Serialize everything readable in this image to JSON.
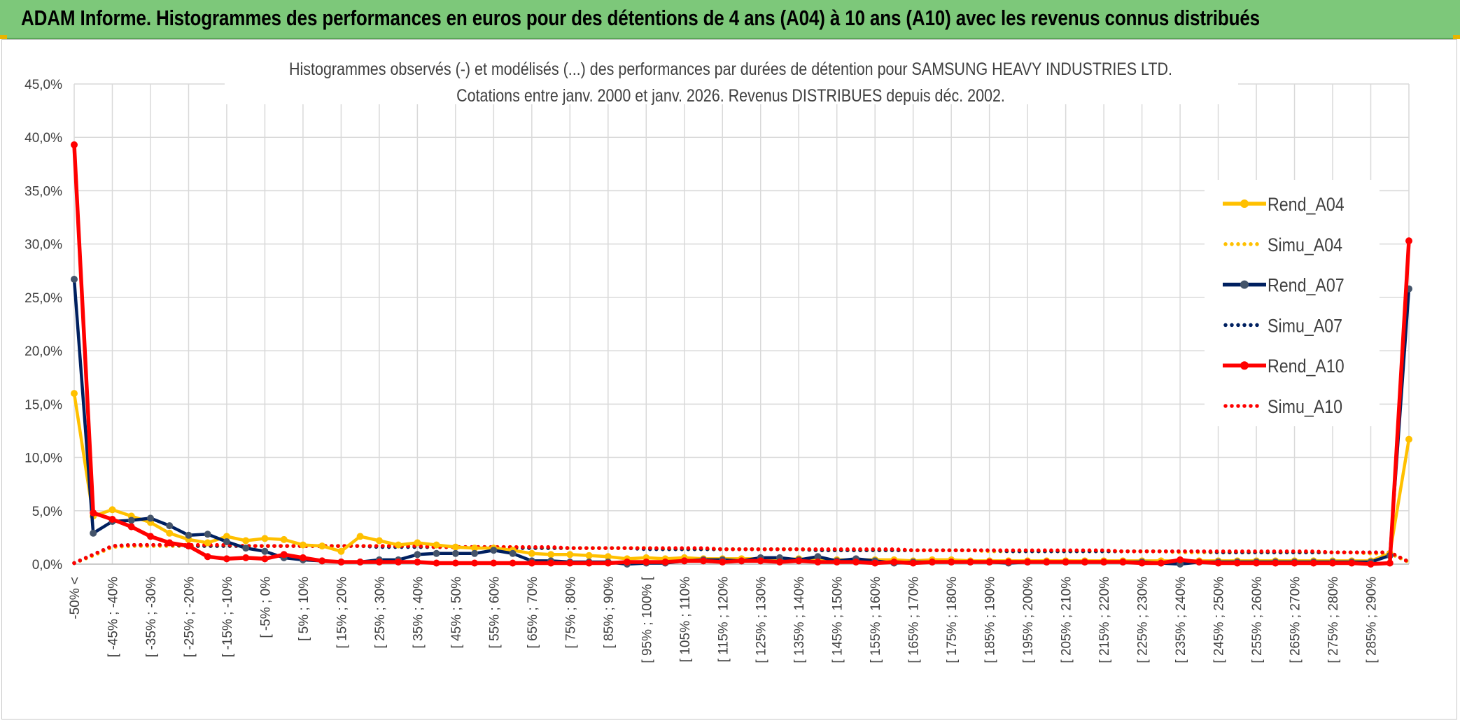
{
  "banner": {
    "title": "ADAM Informe. Histogrammes des performances en euros pour des détentions de 4 ans (A04) à 10 ans (A10) avec les revenus connus distribués"
  },
  "colors": {
    "banner_bg": "#7dc87a",
    "A04": "#ffc000",
    "A07": "#002060",
    "A07_marker": "#44546a",
    "A10": "#ff0000",
    "grid": "#d9d9d9"
  },
  "chart_data": {
    "type": "line",
    "title": "Histogrammes observés (-) et modélisés (...) des performances par durées de détention pour SAMSUNG HEAVY INDUSTRIES LTD.",
    "subtitle": "Cotations entre janv. 2000 et janv. 2026. Revenus DISTRIBUES depuis déc. 2002.",
    "ylim": [
      0,
      45
    ],
    "y_ticks": [
      "0,0%",
      "5,0%",
      "10,0%",
      "15,0%",
      "20,0%",
      "25,0%",
      "30,0%",
      "35,0%",
      "40,0%",
      "45,0%"
    ],
    "grid": true,
    "legend_position": "right",
    "categories": [
      "-50% <",
      "[ -50% ; -45%",
      "[ -45% ; -40%",
      "[ -40% ; -35%",
      "[ -35% ; -30%",
      "[ -30% ; -25%",
      "[ -25% ; -20%",
      "[ -20% ; -15%",
      "[ -15% ; -10%",
      "[ -10% ; -5%",
      "[ -5% ; 0%",
      "[ 0% ; 5%",
      "[ 5% ; 10%",
      "[ 10% ; 15%",
      "[ 15% ; 20%",
      "[ 20% ; 25%",
      "[ 25% ; 30%",
      "[ 30% ; 35%",
      "[ 35% ; 40%",
      "[ 40% ; 45%",
      "[ 45% ; 50%",
      "[ 50% ; 55%",
      "[ 55% ; 60%",
      "[ 60% ; 65%",
      "[ 65% ; 70%",
      "[ 70% ; 75%",
      "[ 75% ; 80%",
      "[ 80% ; 85%",
      "[ 85% ; 90%",
      "[ 90% ; 95%",
      "[ 95% ; 100% [",
      "[ 100% ; 105%",
      "[ 105% ; 110%",
      "[ 110% ; 115%",
      "[ 115% ; 120%",
      "[ 120% ; 125%",
      "[ 125% ; 130%",
      "[ 130% ; 135%",
      "[ 135% ; 140%",
      "[ 140% ; 145%",
      "[ 145% ; 150%",
      "[ 150% ; 155%",
      "[ 155% ; 160%",
      "[ 160% ; 165%",
      "[ 165% ; 170%",
      "[ 170% ; 175%",
      "[ 175% ; 180%",
      "[ 180% ; 185%",
      "[ 185% ; 190%",
      "[ 190% ; 195%",
      "[ 195% ; 200%",
      "[ 200% ; 205%",
      "[ 205% ; 210%",
      "[ 210% ; 215%",
      "[ 215% ; 220%",
      "[ 220% ; 225%",
      "[ 225% ; 230%",
      "[ 230% ; 235%",
      "[ 235% ; 240%",
      "[ 240% ; 245%",
      "[ 245% ; 250%",
      "[ 250% ; 255%",
      "[ 255% ; 260%",
      "[ 260% ; 265%",
      "[ 265% ; 270%",
      "[ 270% ; 275%",
      "[ 275% ; 280%",
      "[ 280% ; 285%",
      "[ 285% ; 290%",
      "[ 290% ; 295%",
      "295% <"
    ],
    "shown_tick_labels": [
      "-50% <",
      "[ -45% ; -40%",
      "[ -35% ; -30%",
      "[ -25% ; -20%",
      "[ -15% ; -10%",
      "[ -5% ; 0%",
      "[ 5% ; 10%",
      "[ 15% ; 20%",
      "[ 25% ; 30%",
      "[ 35% ; 40%",
      "[ 45% ; 50%",
      "[ 55% ; 60%",
      "[ 65% ; 70%",
      "[ 75% ; 80%",
      "[ 85% ; 90%",
      "[ 95% ; 100% [",
      "[ 105% ; 110%",
      "[ 115% ; 120%",
      "[ 125% ; 130%",
      "[ 135% ; 140%",
      "[ 145% ; 150%",
      "[ 155% ; 160%",
      "[ 165% ; 170%",
      "[ 175% ; 180%",
      "[ 185% ; 190%",
      "[ 195% ; 200%",
      "[ 205% ; 210%",
      "[ 215% ; 220%",
      "[ 225% ; 230%",
      "[ 235% ; 240%",
      "[ 245% ; 250%",
      "[ 255% ; 260%",
      "[ 265% ; 270%",
      "[ 275% ; 280%",
      "[ 285% ; 290%"
    ],
    "series": [
      {
        "name": "Rend_A04",
        "style": "solid",
        "color": "#ffc000",
        "values": [
          16.0,
          4.5,
          5.1,
          4.5,
          3.9,
          2.9,
          2.3,
          2.0,
          2.6,
          2.2,
          2.4,
          2.3,
          1.8,
          1.7,
          1.2,
          2.6,
          2.2,
          1.8,
          2.0,
          1.8,
          1.6,
          1.5,
          1.5,
          1.3,
          1.0,
          0.9,
          0.9,
          0.8,
          0.7,
          0.5,
          0.6,
          0.5,
          0.6,
          0.5,
          0.5,
          0.5,
          0.5,
          0.4,
          0.5,
          0.4,
          0.4,
          0.4,
          0.4,
          0.4,
          0.3,
          0.4,
          0.4,
          0.3,
          0.3,
          0.3,
          0.3,
          0.3,
          0.3,
          0.3,
          0.3,
          0.3,
          0.3,
          0.3,
          0.3,
          0.3,
          0.3,
          0.3,
          0.3,
          0.3,
          0.3,
          0.3,
          0.3,
          0.3,
          0.3,
          1.0,
          11.7
        ]
      },
      {
        "name": "Simu_A04",
        "style": "dotted",
        "color": "#ffc000",
        "values": [
          0.1,
          0.8,
          1.6,
          1.7,
          1.7,
          1.7,
          1.7,
          1.7,
          1.7,
          1.7,
          1.7,
          1.7,
          1.7,
          1.7,
          1.7,
          1.7,
          1.7,
          1.7,
          1.6,
          1.6,
          1.6,
          1.6,
          1.6,
          1.6,
          1.5,
          1.5,
          1.5,
          1.5,
          1.5,
          1.5,
          1.5,
          1.4,
          1.4,
          1.4,
          1.4,
          1.4,
          1.4,
          1.4,
          1.4,
          1.3,
          1.3,
          1.3,
          1.3,
          1.3,
          1.3,
          1.3,
          1.3,
          1.3,
          1.2,
          1.2,
          1.2,
          1.2,
          1.2,
          1.2,
          1.2,
          1.2,
          1.2,
          1.2,
          1.1,
          1.1,
          1.1,
          1.1,
          1.1,
          1.1,
          1.1,
          1.1,
          1.1,
          1.1,
          1.0,
          1.0,
          0.2
        ]
      },
      {
        "name": "Rend_A07",
        "style": "solid",
        "color": "#002060",
        "values": [
          26.7,
          2.9,
          4.0,
          4.1,
          4.3,
          3.6,
          2.7,
          2.8,
          2.1,
          1.5,
          1.2,
          0.6,
          0.4,
          0.3,
          0.2,
          0.2,
          0.4,
          0.4,
          0.9,
          1.0,
          1.0,
          1.0,
          1.3,
          1.0,
          0.3,
          0.3,
          0.2,
          0.2,
          0.2,
          0.0,
          0.1,
          0.1,
          0.3,
          0.4,
          0.4,
          0.3,
          0.6,
          0.6,
          0.4,
          0.7,
          0.3,
          0.5,
          0.3,
          0.1,
          0.2,
          0.2,
          0.2,
          0.2,
          0.2,
          0.1,
          0.2,
          0.2,
          0.2,
          0.2,
          0.2,
          0.2,
          0.2,
          0.1,
          0.0,
          0.2,
          0.2,
          0.2,
          0.2,
          0.2,
          0.2,
          0.2,
          0.2,
          0.2,
          0.2,
          0.8,
          25.8
        ]
      },
      {
        "name": "Simu_A07",
        "style": "dotted",
        "color": "#002060",
        "values": [
          0.1,
          0.9,
          1.7,
          1.8,
          1.8,
          1.8,
          1.7,
          1.7,
          1.7,
          1.7,
          1.7,
          1.7,
          1.7,
          1.7,
          1.7,
          1.7,
          1.6,
          1.6,
          1.6,
          1.6,
          1.6,
          1.6,
          1.6,
          1.5,
          1.5,
          1.5,
          1.5,
          1.5,
          1.5,
          1.5,
          1.4,
          1.4,
          1.4,
          1.4,
          1.4,
          1.4,
          1.4,
          1.4,
          1.4,
          1.3,
          1.3,
          1.3,
          1.3,
          1.3,
          1.3,
          1.3,
          1.3,
          1.3,
          1.3,
          1.2,
          1.2,
          1.2,
          1.2,
          1.2,
          1.2,
          1.2,
          1.2,
          1.2,
          1.2,
          1.2,
          1.1,
          1.1,
          1.1,
          1.1,
          1.1,
          1.1,
          1.1,
          1.1,
          1.1,
          1.1,
          0.2
        ]
      },
      {
        "name": "Rend_A10",
        "style": "solid",
        "color": "#ff0000",
        "values": [
          39.3,
          4.8,
          4.2,
          3.5,
          2.6,
          2.0,
          1.7,
          0.7,
          0.5,
          0.6,
          0.5,
          0.9,
          0.6,
          0.3,
          0.2,
          0.2,
          0.2,
          0.2,
          0.2,
          0.1,
          0.1,
          0.1,
          0.1,
          0.1,
          0.1,
          0.1,
          0.1,
          0.1,
          0.1,
          0.2,
          0.2,
          0.2,
          0.3,
          0.3,
          0.2,
          0.3,
          0.3,
          0.2,
          0.3,
          0.2,
          0.2,
          0.2,
          0.1,
          0.2,
          0.1,
          0.2,
          0.2,
          0.2,
          0.2,
          0.2,
          0.2,
          0.2,
          0.2,
          0.2,
          0.2,
          0.2,
          0.1,
          0.1,
          0.4,
          0.2,
          0.1,
          0.1,
          0.1,
          0.1,
          0.1,
          0.1,
          0.1,
          0.1,
          0.0,
          0.1,
          30.3
        ]
      },
      {
        "name": "Simu_A10",
        "style": "dotted",
        "color": "#ff0000",
        "values": [
          0.1,
          0.9,
          1.7,
          1.8,
          1.8,
          1.8,
          1.8,
          1.8,
          1.8,
          1.7,
          1.7,
          1.7,
          1.7,
          1.7,
          1.7,
          1.7,
          1.7,
          1.7,
          1.7,
          1.6,
          1.6,
          1.6,
          1.6,
          1.6,
          1.6,
          1.6,
          1.5,
          1.5,
          1.5,
          1.5,
          1.5,
          1.5,
          1.5,
          1.5,
          1.4,
          1.4,
          1.4,
          1.4,
          1.4,
          1.4,
          1.4,
          1.4,
          1.4,
          1.4,
          1.3,
          1.3,
          1.3,
          1.3,
          1.3,
          1.3,
          1.3,
          1.3,
          1.3,
          1.3,
          1.3,
          1.2,
          1.2,
          1.2,
          1.2,
          1.2,
          1.2,
          1.2,
          1.2,
          1.2,
          1.2,
          1.2,
          1.1,
          1.1,
          1.1,
          1.1,
          0.2
        ]
      }
    ]
  }
}
